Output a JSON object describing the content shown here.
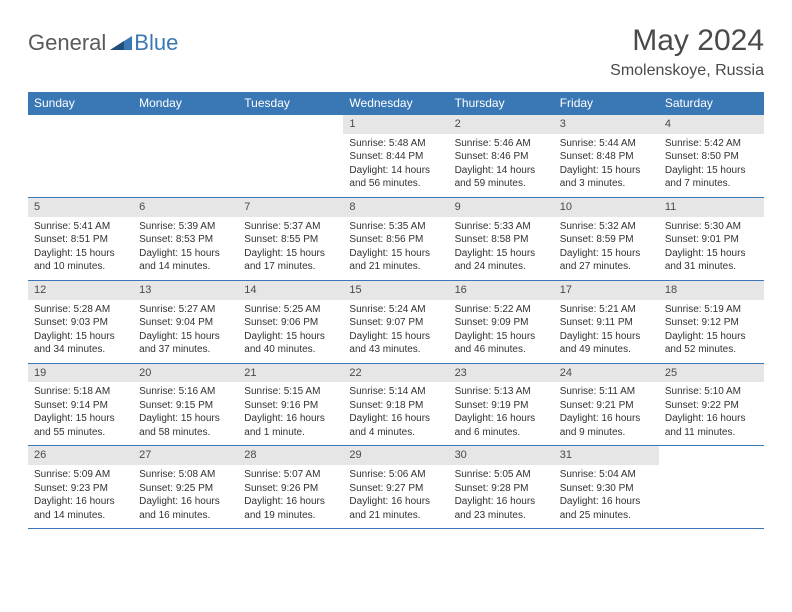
{
  "logo": {
    "text_general": "General",
    "text_blue": "Blue"
  },
  "title": "May 2024",
  "location": "Smolenskoye, Russia",
  "colors": {
    "header_bg": "#3a78b5",
    "header_text": "#ffffff",
    "date_strip_bg": "#e6e6e6",
    "rule": "#3a78b5",
    "logo_gray": "#5a5a5a",
    "logo_blue": "#3a78b5",
    "body_text": "#323232"
  },
  "weekdays": [
    "Sunday",
    "Monday",
    "Tuesday",
    "Wednesday",
    "Thursday",
    "Friday",
    "Saturday"
  ],
  "weeks": [
    [
      {
        "empty": true
      },
      {
        "empty": true
      },
      {
        "empty": true
      },
      {
        "date": "1",
        "sunrise": "Sunrise: 5:48 AM",
        "sunset": "Sunset: 8:44 PM",
        "daylight": "Daylight: 14 hours and 56 minutes."
      },
      {
        "date": "2",
        "sunrise": "Sunrise: 5:46 AM",
        "sunset": "Sunset: 8:46 PM",
        "daylight": "Daylight: 14 hours and 59 minutes."
      },
      {
        "date": "3",
        "sunrise": "Sunrise: 5:44 AM",
        "sunset": "Sunset: 8:48 PM",
        "daylight": "Daylight: 15 hours and 3 minutes."
      },
      {
        "date": "4",
        "sunrise": "Sunrise: 5:42 AM",
        "sunset": "Sunset: 8:50 PM",
        "daylight": "Daylight: 15 hours and 7 minutes."
      }
    ],
    [
      {
        "date": "5",
        "sunrise": "Sunrise: 5:41 AM",
        "sunset": "Sunset: 8:51 PM",
        "daylight": "Daylight: 15 hours and 10 minutes."
      },
      {
        "date": "6",
        "sunrise": "Sunrise: 5:39 AM",
        "sunset": "Sunset: 8:53 PM",
        "daylight": "Daylight: 15 hours and 14 minutes."
      },
      {
        "date": "7",
        "sunrise": "Sunrise: 5:37 AM",
        "sunset": "Sunset: 8:55 PM",
        "daylight": "Daylight: 15 hours and 17 minutes."
      },
      {
        "date": "8",
        "sunrise": "Sunrise: 5:35 AM",
        "sunset": "Sunset: 8:56 PM",
        "daylight": "Daylight: 15 hours and 21 minutes."
      },
      {
        "date": "9",
        "sunrise": "Sunrise: 5:33 AM",
        "sunset": "Sunset: 8:58 PM",
        "daylight": "Daylight: 15 hours and 24 minutes."
      },
      {
        "date": "10",
        "sunrise": "Sunrise: 5:32 AM",
        "sunset": "Sunset: 8:59 PM",
        "daylight": "Daylight: 15 hours and 27 minutes."
      },
      {
        "date": "11",
        "sunrise": "Sunrise: 5:30 AM",
        "sunset": "Sunset: 9:01 PM",
        "daylight": "Daylight: 15 hours and 31 minutes."
      }
    ],
    [
      {
        "date": "12",
        "sunrise": "Sunrise: 5:28 AM",
        "sunset": "Sunset: 9:03 PM",
        "daylight": "Daylight: 15 hours and 34 minutes."
      },
      {
        "date": "13",
        "sunrise": "Sunrise: 5:27 AM",
        "sunset": "Sunset: 9:04 PM",
        "daylight": "Daylight: 15 hours and 37 minutes."
      },
      {
        "date": "14",
        "sunrise": "Sunrise: 5:25 AM",
        "sunset": "Sunset: 9:06 PM",
        "daylight": "Daylight: 15 hours and 40 minutes."
      },
      {
        "date": "15",
        "sunrise": "Sunrise: 5:24 AM",
        "sunset": "Sunset: 9:07 PM",
        "daylight": "Daylight: 15 hours and 43 minutes."
      },
      {
        "date": "16",
        "sunrise": "Sunrise: 5:22 AM",
        "sunset": "Sunset: 9:09 PM",
        "daylight": "Daylight: 15 hours and 46 minutes."
      },
      {
        "date": "17",
        "sunrise": "Sunrise: 5:21 AM",
        "sunset": "Sunset: 9:11 PM",
        "daylight": "Daylight: 15 hours and 49 minutes."
      },
      {
        "date": "18",
        "sunrise": "Sunrise: 5:19 AM",
        "sunset": "Sunset: 9:12 PM",
        "daylight": "Daylight: 15 hours and 52 minutes."
      }
    ],
    [
      {
        "date": "19",
        "sunrise": "Sunrise: 5:18 AM",
        "sunset": "Sunset: 9:14 PM",
        "daylight": "Daylight: 15 hours and 55 minutes."
      },
      {
        "date": "20",
        "sunrise": "Sunrise: 5:16 AM",
        "sunset": "Sunset: 9:15 PM",
        "daylight": "Daylight: 15 hours and 58 minutes."
      },
      {
        "date": "21",
        "sunrise": "Sunrise: 5:15 AM",
        "sunset": "Sunset: 9:16 PM",
        "daylight": "Daylight: 16 hours and 1 minute."
      },
      {
        "date": "22",
        "sunrise": "Sunrise: 5:14 AM",
        "sunset": "Sunset: 9:18 PM",
        "daylight": "Daylight: 16 hours and 4 minutes."
      },
      {
        "date": "23",
        "sunrise": "Sunrise: 5:13 AM",
        "sunset": "Sunset: 9:19 PM",
        "daylight": "Daylight: 16 hours and 6 minutes."
      },
      {
        "date": "24",
        "sunrise": "Sunrise: 5:11 AM",
        "sunset": "Sunset: 9:21 PM",
        "daylight": "Daylight: 16 hours and 9 minutes."
      },
      {
        "date": "25",
        "sunrise": "Sunrise: 5:10 AM",
        "sunset": "Sunset: 9:22 PM",
        "daylight": "Daylight: 16 hours and 11 minutes."
      }
    ],
    [
      {
        "date": "26",
        "sunrise": "Sunrise: 5:09 AM",
        "sunset": "Sunset: 9:23 PM",
        "daylight": "Daylight: 16 hours and 14 minutes."
      },
      {
        "date": "27",
        "sunrise": "Sunrise: 5:08 AM",
        "sunset": "Sunset: 9:25 PM",
        "daylight": "Daylight: 16 hours and 16 minutes."
      },
      {
        "date": "28",
        "sunrise": "Sunrise: 5:07 AM",
        "sunset": "Sunset: 9:26 PM",
        "daylight": "Daylight: 16 hours and 19 minutes."
      },
      {
        "date": "29",
        "sunrise": "Sunrise: 5:06 AM",
        "sunset": "Sunset: 9:27 PM",
        "daylight": "Daylight: 16 hours and 21 minutes."
      },
      {
        "date": "30",
        "sunrise": "Sunrise: 5:05 AM",
        "sunset": "Sunset: 9:28 PM",
        "daylight": "Daylight: 16 hours and 23 minutes."
      },
      {
        "date": "31",
        "sunrise": "Sunrise: 5:04 AM",
        "sunset": "Sunset: 9:30 PM",
        "daylight": "Daylight: 16 hours and 25 minutes."
      },
      {
        "empty": true
      }
    ]
  ]
}
